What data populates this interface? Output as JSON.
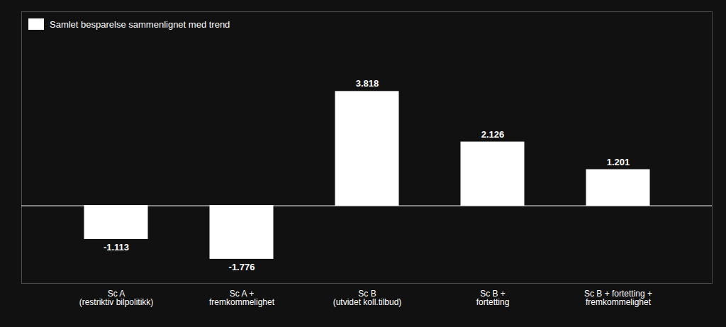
{
  "chart_data": {
    "type": "bar",
    "categories": [
      "Sc A\n(restriktiv bilpolitikk)",
      "Sc A +\nfremkommelighet",
      "Sc B\n(utvidet koll.tilbud)",
      "Sc B +\nfortetting",
      "Sc B + fortetting +\nfremkommelighet"
    ],
    "series": [
      {
        "name": "Samlet besparelse sammenlignet med trend",
        "color": "#ffffff",
        "values": [
          -1113,
          -1776,
          3818,
          2126,
          1201
        ],
        "value_labels": [
          "-1.113",
          "-1.776",
          "3.818",
          "2.126",
          "1.201"
        ]
      }
    ],
    "ylim": [
      -2600,
      6500
    ],
    "legend": "upper left",
    "data_labels": true,
    "tick_labels": "x",
    "grid": false
  }
}
